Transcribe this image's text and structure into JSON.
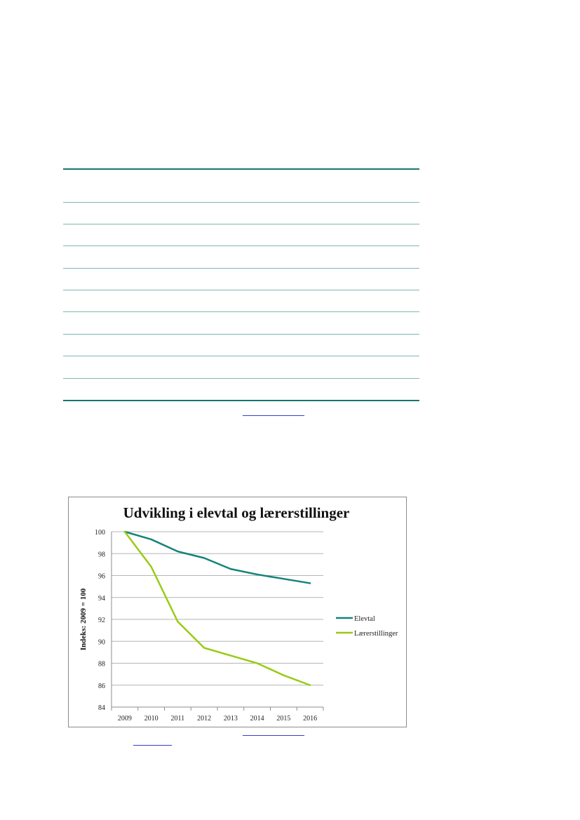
{
  "chart_data": {
    "type": "line",
    "title": "Udvikling i elevtal og lærerstillinger",
    "ylabel": "Indeks: 2009 = 100",
    "xlabel": "",
    "categories": [
      "2009",
      "2010",
      "2011",
      "2012",
      "2013",
      "2014",
      "2015",
      "2016"
    ],
    "ylim": [
      84,
      100
    ],
    "yticks": [
      84,
      86,
      88,
      90,
      92,
      94,
      96,
      98,
      100
    ],
    "grid": true,
    "legend": "right",
    "series": [
      {
        "name": "Elevtal",
        "color": "#14837a",
        "values": [
          100,
          99.3,
          98.2,
          97.6,
          96.6,
          96.1,
          95.7,
          95.3
        ]
      },
      {
        "name": "Lærerstillinger",
        "color": "#9acb14",
        "values": [
          100,
          96.8,
          91.8,
          89.4,
          88.7,
          88.0,
          86.9,
          86.0
        ]
      }
    ]
  }
}
